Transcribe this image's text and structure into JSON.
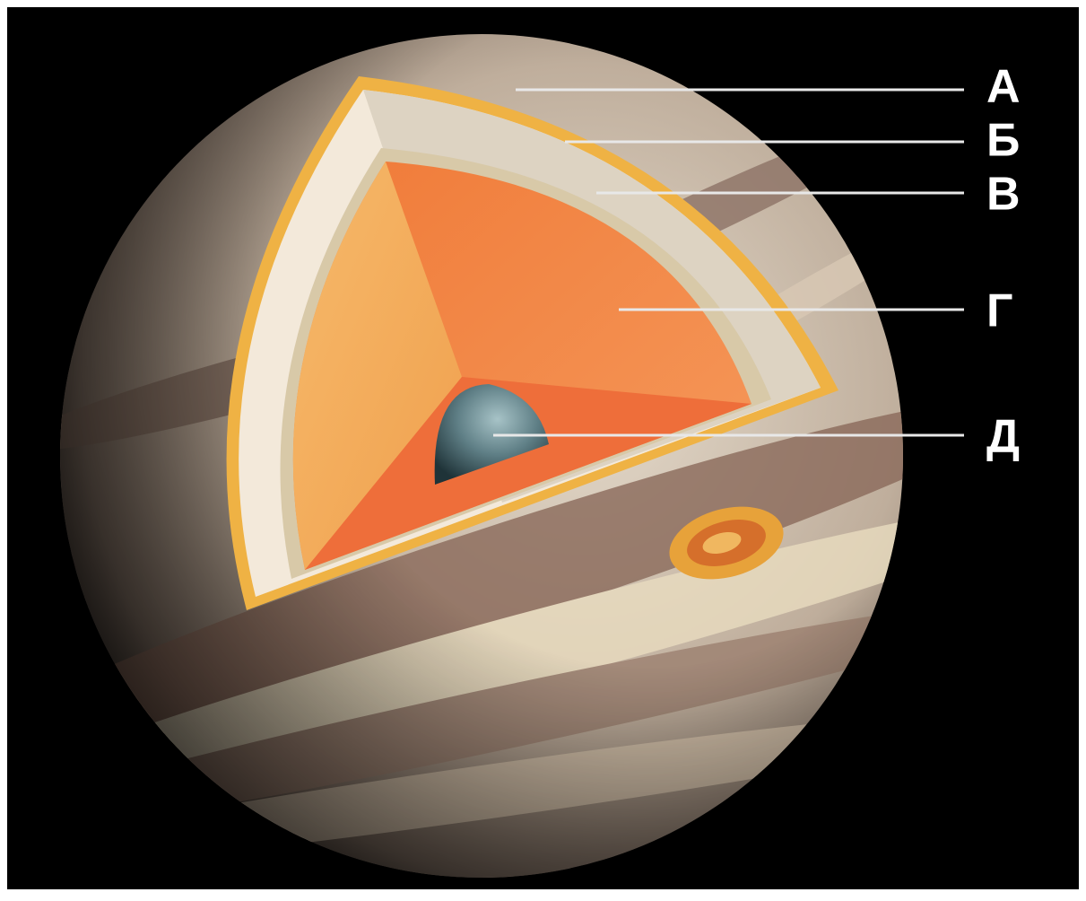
{
  "labels": [
    "А",
    "Б",
    "В",
    "Г",
    "Д"
  ]
}
